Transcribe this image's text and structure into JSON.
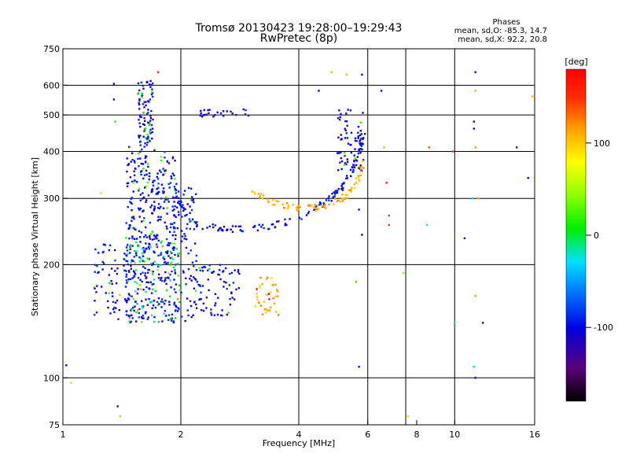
{
  "header": {
    "title_line1": "Tromsø 20130423 19:28:00–19:29:43",
    "title_line2": "RwPretec (8p)",
    "stats_title": "Phases",
    "stats_line1": "mean, sd,O: -85.3, 14.7",
    "stats_line2": "mean, sd,X:  92.2, 20.8"
  },
  "chart_data": {
    "type": "scatter",
    "title": "Tromsø 20130423 19:28:00–19:29:43",
    "subtitle": "RwPretec (8p)",
    "xlabel": "Frequency [MHz]",
    "ylabel": "Stationary phase Virtual Height [km]",
    "xscale": "log",
    "yscale": "log",
    "xlim": [
      1,
      16
    ],
    "ylim": [
      75,
      750
    ],
    "x_ticks": [
      1,
      2,
      4,
      6,
      8,
      10,
      16
    ],
    "x_tick_labels": [
      "1",
      "2",
      "4",
      "6",
      "8",
      "10",
      "16"
    ],
    "x_gridlines": [
      2,
      4,
      6,
      7.5,
      10
    ],
    "y_ticks": [
      75,
      100,
      200,
      300,
      400,
      500,
      600,
      750
    ],
    "y_tick_labels": [
      "75",
      "100",
      "200",
      "300",
      "400",
      "500",
      "600",
      "750"
    ],
    "y_gridlines": [
      100,
      200,
      300,
      400,
      500,
      600
    ],
    "grid": true,
    "colorbar": {
      "label": "[deg]",
      "range": [
        -180,
        180
      ],
      "ticks": [
        100,
        0,
        -100
      ],
      "tick_labels": [
        "100",
        "0",
        "-100"
      ]
    },
    "series": [
      {
        "type": "scatter-clusters",
        "clusters": [
          {
            "x": [
              1.45,
              1.72
            ],
            "y": [
              140,
              420
            ],
            "n": 260,
            "phase": -100
          },
          {
            "x": [
              1.55,
              1.7
            ],
            "y": [
              420,
              620
            ],
            "n": 90,
            "phase": -105
          },
          {
            "x": [
              1.72,
              1.95
            ],
            "y": [
              140,
              400
            ],
            "n": 170,
            "phase": -95
          },
          {
            "x": [
              1.9,
              2.2
            ],
            "y": [
              140,
              320
            ],
            "n": 110,
            "phase": -100
          },
          {
            "x": [
              1.2,
              1.5
            ],
            "y": [
              140,
              230
            ],
            "n": 80,
            "phase": -100
          },
          {
            "x": [
              1.45,
              2.0
            ],
            "y": [
              140,
              230
            ],
            "n": 60,
            "phase": -10
          },
          {
            "x": [
              2.2,
              2.85
            ],
            "y": [
              145,
              200
            ],
            "n": 70,
            "phase": -100
          },
          {
            "x": [
              3.1,
              3.55
            ],
            "y": [
              145,
              185
            ],
            "n": 40,
            "phase": 110
          },
          {
            "x": [
              5.0,
              5.85
            ],
            "y": [
              350,
              520
            ],
            "n": 70,
            "phase": -105
          },
          {
            "x": [
              2.2,
              3.0
            ],
            "y": [
              495,
              520
            ],
            "n": 25,
            "phase": -105
          }
        ],
        "traces": [
          {
            "x": [
              1.95,
              2.2,
              2.6,
              3.0,
              3.5,
              4.0,
              4.5,
              5.0,
              5.4,
              5.7,
              5.85
            ],
            "y": [
              300,
              255,
              248,
              250,
              255,
              265,
              285,
              310,
              345,
              400,
              440
            ],
            "n": 140,
            "phase": -100
          },
          {
            "x": [
              3.0,
              3.4,
              3.8,
              4.2,
              4.6,
              5.0,
              5.4,
              5.7,
              5.85
            ],
            "y": [
              310,
              295,
              285,
              282,
              285,
              295,
              310,
              340,
              380
            ],
            "n": 90,
            "phase": 110
          }
        ],
        "isolated_points": [
          {
            "x": 1.02,
            "y": 108,
            "phase": -100
          },
          {
            "x": 1.05,
            "y": 97,
            "phase": 100
          },
          {
            "x": 1.35,
            "y": 605,
            "phase": -110
          },
          {
            "x": 1.35,
            "y": 550,
            "phase": -110
          },
          {
            "x": 1.36,
            "y": 480,
            "phase": 20
          },
          {
            "x": 1.38,
            "y": 84,
            "phase": -110
          },
          {
            "x": 1.4,
            "y": 79,
            "phase": 110
          },
          {
            "x": 1.25,
            "y": 310,
            "phase": 100
          },
          {
            "x": 1.75,
            "y": 650,
            "phase": 160
          },
          {
            "x": 4.85,
            "y": 650,
            "phase": 110
          },
          {
            "x": 5.3,
            "y": 640,
            "phase": 110
          },
          {
            "x": 5.8,
            "y": 640,
            "phase": -100
          },
          {
            "x": 4.5,
            "y": 580,
            "phase": -100
          },
          {
            "x": 5.7,
            "y": 280,
            "phase": -105
          },
          {
            "x": 5.8,
            "y": 240,
            "phase": -110
          },
          {
            "x": 5.6,
            "y": 180,
            "phase": 20
          },
          {
            "x": 5.7,
            "y": 107,
            "phase": -105
          },
          {
            "x": 6.5,
            "y": 580,
            "phase": -100
          },
          {
            "x": 6.7,
            "y": 330,
            "phase": 165
          },
          {
            "x": 6.8,
            "y": 270,
            "phase": 150
          },
          {
            "x": 6.8,
            "y": 255,
            "phase": 150
          },
          {
            "x": 6.6,
            "y": 410,
            "phase": 110
          },
          {
            "x": 7.4,
            "y": 190,
            "phase": 40
          },
          {
            "x": 7.6,
            "y": 79,
            "phase": 100
          },
          {
            "x": 8.5,
            "y": 255,
            "phase": -20
          },
          {
            "x": 8.6,
            "y": 410,
            "phase": 140
          },
          {
            "x": 9.9,
            "y": 400,
            "phase": 150
          },
          {
            "x": 10.0,
            "y": 140,
            "phase": -20
          },
          {
            "x": 10.6,
            "y": 235,
            "phase": -110
          },
          {
            "x": 11.3,
            "y": 650,
            "phase": -110
          },
          {
            "x": 11.3,
            "y": 580,
            "phase": 110
          },
          {
            "x": 11.2,
            "y": 480,
            "phase": -110
          },
          {
            "x": 11.2,
            "y": 460,
            "phase": -110
          },
          {
            "x": 11.3,
            "y": 410,
            "phase": 120
          },
          {
            "x": 11.1,
            "y": 300,
            "phase": -30
          },
          {
            "x": 11.3,
            "y": 165,
            "phase": 120
          },
          {
            "x": 11.2,
            "y": 107,
            "phase": -20
          },
          {
            "x": 11.3,
            "y": 100,
            "phase": -100
          },
          {
            "x": 11.8,
            "y": 140,
            "phase": -110
          },
          {
            "x": 11.5,
            "y": 300,
            "phase": 110
          },
          {
            "x": 14.4,
            "y": 410,
            "phase": -150
          },
          {
            "x": 15.4,
            "y": 340,
            "phase": -110
          },
          {
            "x": 15.8,
            "y": 560,
            "phase": 110
          }
        ]
      }
    ]
  }
}
